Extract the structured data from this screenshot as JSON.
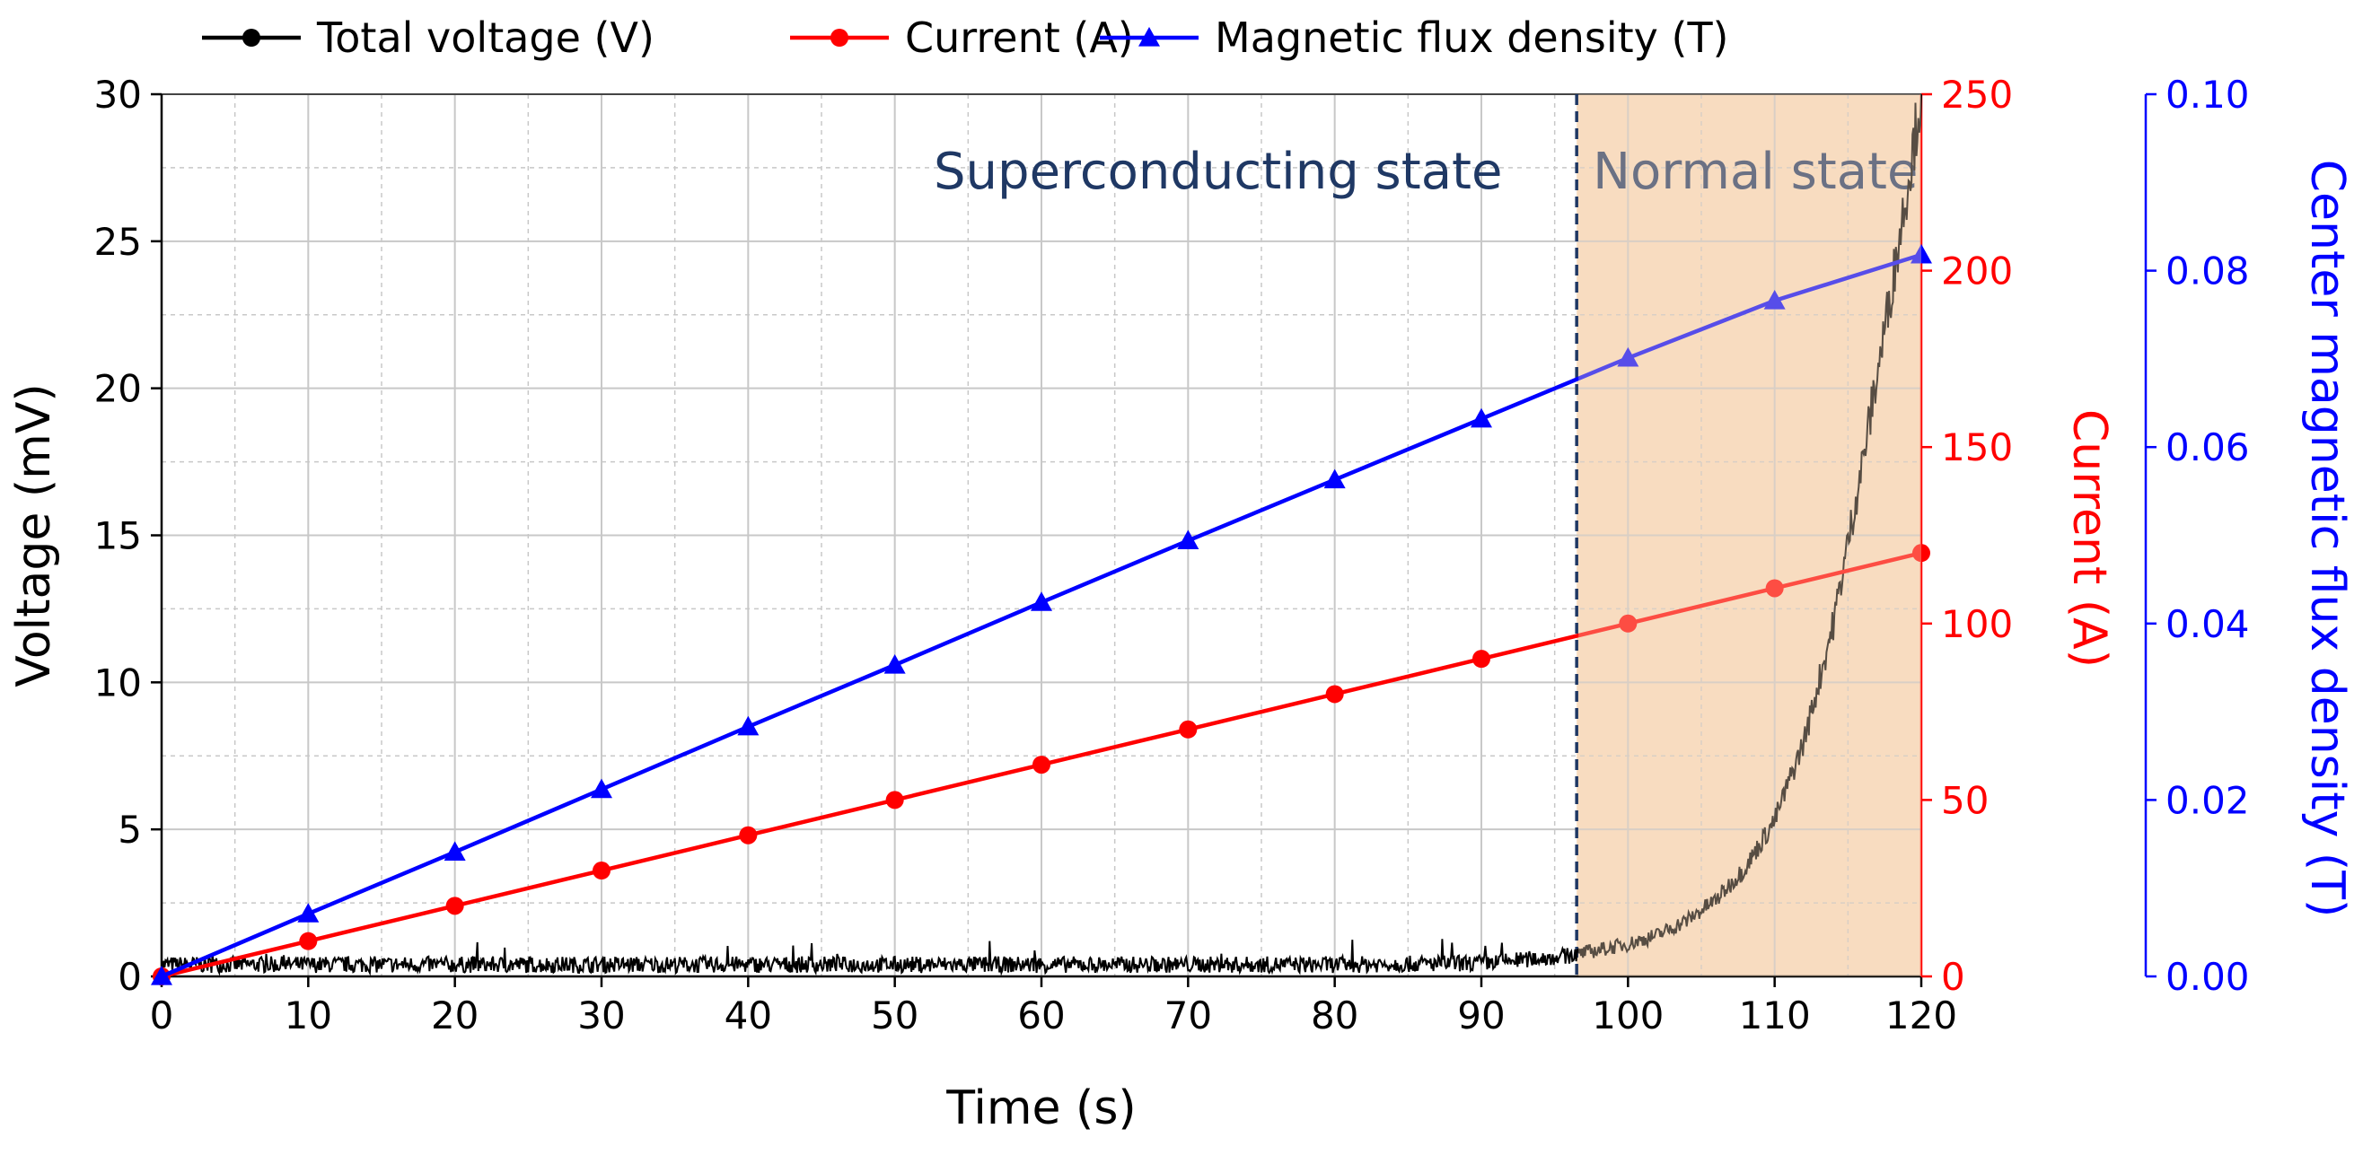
{
  "chart_data": {
    "type": "line",
    "legend": {
      "placement": "top",
      "entries": [
        {
          "label": "Total voltage (V)",
          "color": "#000000",
          "marker": "circle"
        },
        {
          "label": "Current (A)",
          "color": "#ff0000",
          "marker": "circle"
        },
        {
          "label": "Magnetic flux density (T)",
          "color": "#0000ff",
          "marker": "triangle"
        }
      ]
    },
    "xlabel": "Time (s)",
    "xlim": [
      0,
      120
    ],
    "xticks": [
      0,
      10,
      20,
      30,
      40,
      50,
      60,
      70,
      80,
      90,
      100,
      110,
      120
    ],
    "ylabel_left": "Voltage (mV)",
    "ylim_left": [
      0,
      30
    ],
    "yticks_left": [
      0,
      5,
      10,
      15,
      20,
      25,
      30
    ],
    "ylabel_right1": "Current (A)",
    "ylim_right1": [
      0,
      250
    ],
    "yticks_right1": [
      0,
      50,
      100,
      150,
      200,
      250
    ],
    "ylabel_right2": "Center magnetic flux density (T)",
    "ylim_right2": [
      0,
      0.1
    ],
    "yticks_right2": [
      "0.00",
      "0.02",
      "0.04",
      "0.06",
      "0.08",
      "0.10"
    ],
    "grid": true,
    "transition_time": 96.5,
    "annotations": {
      "superconducting": "Superconducting state",
      "normal": "Normal state"
    },
    "series": [
      {
        "name": "Total voltage (V)",
        "axis": "left",
        "color": "#000000",
        "x": [
          0,
          10,
          20,
          30,
          40,
          50,
          60,
          70,
          80,
          90,
          96,
          98,
          100,
          102,
          104,
          106,
          108,
          110,
          112,
          114,
          116,
          118,
          120
        ],
        "y": [
          0.4,
          0.4,
          0.4,
          0.4,
          0.4,
          0.4,
          0.4,
          0.4,
          0.4,
          0.45,
          0.7,
          0.9,
          1.1,
          1.4,
          1.9,
          2.6,
          3.7,
          5.3,
          8.0,
          12.0,
          17.5,
          23.5,
          30.0
        ]
      },
      {
        "name": "Current (A)",
        "axis": "right1",
        "color": "#ff0000",
        "x": [
          0,
          10,
          20,
          30,
          40,
          50,
          60,
          70,
          80,
          90,
          100,
          110,
          120
        ],
        "y": [
          0,
          10,
          20,
          30,
          40,
          50,
          60,
          70,
          80,
          90,
          100,
          110,
          120
        ]
      },
      {
        "name": "Magnetic flux density (T)",
        "axis": "right2",
        "color": "#0000ff",
        "x": [
          0,
          10,
          20,
          30,
          40,
          50,
          60,
          70,
          80,
          90,
          100,
          110,
          120
        ],
        "y": [
          0,
          0.0071,
          0.0141,
          0.0212,
          0.0283,
          0.0353,
          0.0424,
          0.0494,
          0.0563,
          0.0632,
          0.0701,
          0.0766,
          0.0818
        ]
      }
    ]
  }
}
